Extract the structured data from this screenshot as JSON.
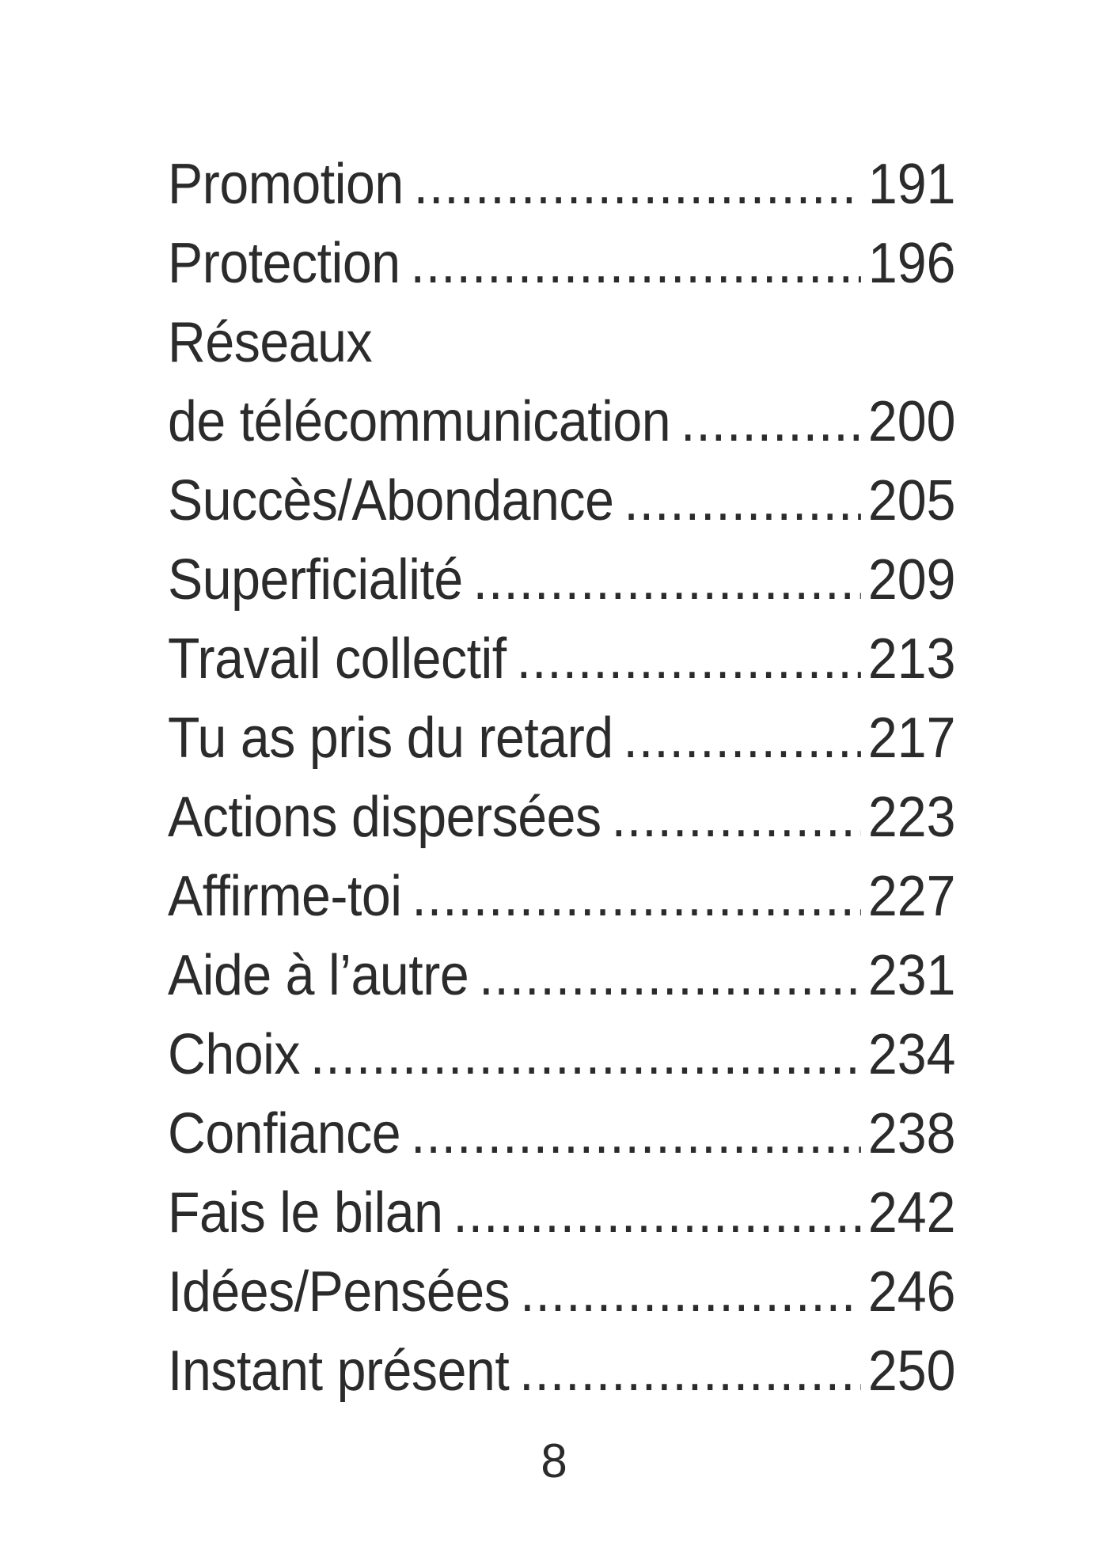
{
  "page": {
    "background": "#ffffff",
    "text_color": "#2b2b2b",
    "entries": [
      {
        "title": "Promotion",
        "page": "191"
      },
      {
        "title": "Protection",
        "page": "196"
      },
      {
        "title": "Réseaux\nde télécommunication",
        "page": "200"
      },
      {
        "title": "Succès/Abondance",
        "page": "205"
      },
      {
        "title": "Superficialité",
        "page": "209"
      },
      {
        "title": "Travail collectif",
        "page": "213"
      },
      {
        "title": "Tu as pris du retard",
        "page": "217"
      },
      {
        "title": "Actions dispersées",
        "page": "223"
      },
      {
        "title": "Affirme-toi",
        "page": "227"
      },
      {
        "title": "Aide à l’autre",
        "page": "231"
      },
      {
        "title": "Choix",
        "page": "234"
      },
      {
        "title": "Confiance",
        "page": "238"
      },
      {
        "title": "Fais le bilan",
        "page": "242"
      },
      {
        "title": "Idées/Pensées",
        "page": "246"
      },
      {
        "title": "Instant présent",
        "page": "250"
      }
    ],
    "page_number": "8"
  }
}
